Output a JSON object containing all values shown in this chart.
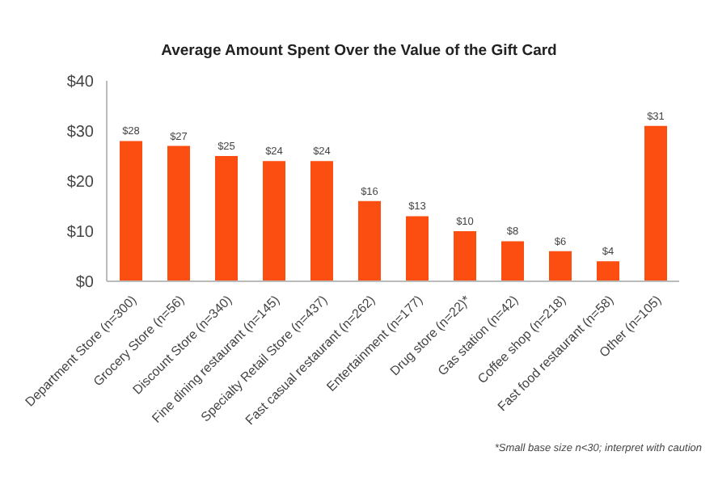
{
  "chart_data": {
    "type": "bar",
    "title": "Average Amount Spent Over the Value of the Gift Card",
    "categories": [
      "Department Store (n=300)",
      "Grocery Store (n=56)",
      "Discount Store (n=340)",
      "Fine dining restaurant (n=145)",
      "Specialty Retail Store (n=437)",
      "Fast casual restaurant (n=262)",
      "Entertainment (n=177)",
      "Drug store (n=22)*",
      "Gas station (n=42)",
      "Coffee shop (n=218)",
      "Fast food restaurant (n=58)",
      "Other (n=105)"
    ],
    "values": [
      28,
      27,
      25,
      24,
      24,
      16,
      13,
      10,
      8,
      6,
      4,
      31
    ],
    "value_labels": [
      "$28",
      "$27",
      "$25",
      "$24",
      "$24",
      "$16",
      "$13",
      "$10",
      "$8",
      "$6",
      "$4",
      "$31"
    ],
    "color": "#fc4e10",
    "ylim": [
      0,
      40
    ],
    "yticks": [
      {
        "value": 0,
        "label": "$0"
      },
      {
        "value": 10,
        "label": "$10"
      },
      {
        "value": 20,
        "label": "$20"
      },
      {
        "value": 30,
        "label": "$30"
      },
      {
        "value": 40,
        "label": "$40"
      }
    ],
    "grid": false,
    "legend": false,
    "annotations": [
      "*Small base size n<30; interpret with caution"
    ]
  }
}
